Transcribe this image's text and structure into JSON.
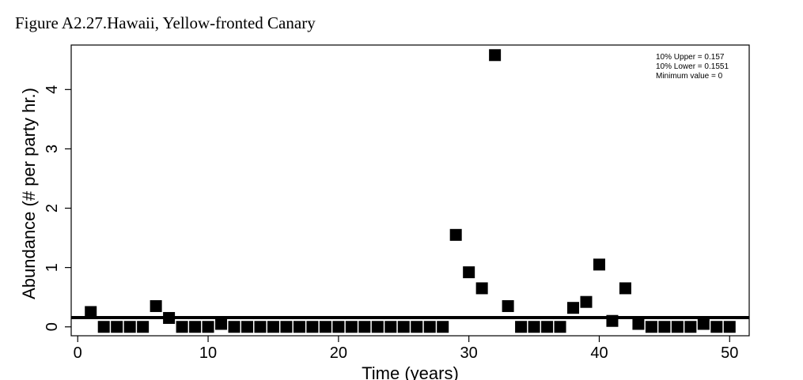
{
  "figure": {
    "title": "Figure A2.27.Hawaii, Yellow-fronted Canary"
  },
  "chart_data": {
    "type": "scatter",
    "xlabel": "Time (years)",
    "ylabel": "Abundance (# per party hr.)",
    "xlim": [
      -0.5,
      51.5
    ],
    "ylim": [
      -0.15,
      4.75
    ],
    "xticks": [
      0,
      10,
      20,
      30,
      40,
      50
    ],
    "yticks": [
      0,
      1,
      2,
      3,
      4
    ],
    "marker": "square",
    "marker_color": "#000000",
    "grid": false,
    "reference_line": {
      "y": 0.157
    },
    "annotations": [
      "10% Upper =  0.157",
      "10% Lower =  0.1551",
      "Minimum value =  0"
    ],
    "x": [
      1,
      2,
      3,
      4,
      5,
      6,
      7,
      8,
      9,
      10,
      11,
      12,
      13,
      14,
      15,
      16,
      17,
      18,
      19,
      20,
      21,
      22,
      23,
      24,
      25,
      26,
      27,
      28,
      29,
      30,
      31,
      32,
      33,
      34,
      35,
      36,
      37,
      38,
      39,
      40,
      41,
      42,
      43,
      44,
      45,
      46,
      47,
      48,
      49,
      50
    ],
    "y": [
      0.25,
      0,
      0,
      0,
      0,
      0.35,
      0.15,
      0,
      0,
      0,
      0.05,
      0,
      0,
      0,
      0,
      0,
      0,
      0,
      0,
      0,
      0,
      0,
      0,
      0,
      0,
      0,
      0,
      0,
      1.55,
      0.92,
      0.65,
      4.58,
      0.35,
      0,
      0,
      0,
      0,
      0.32,
      0.42,
      1.05,
      0.1,
      0.65,
      0.05,
      0,
      0,
      0,
      0,
      0.05,
      0,
      0
    ]
  }
}
